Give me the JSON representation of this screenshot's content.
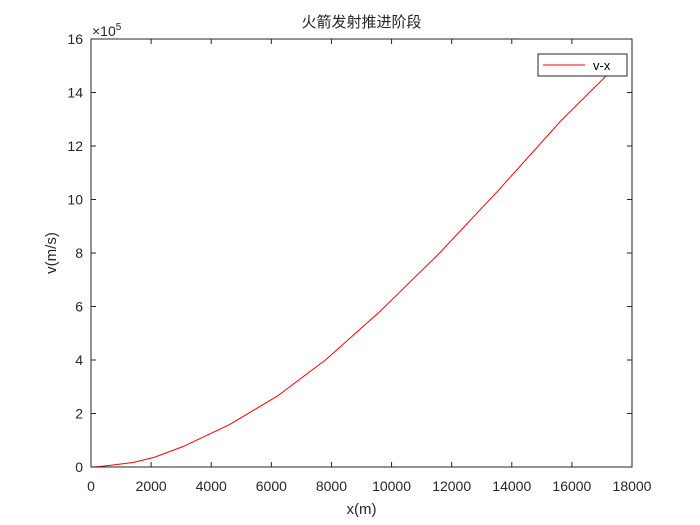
{
  "chart_data": {
    "type": "line",
    "title": "火箭发射推进阶段",
    "xlabel": "x(m)",
    "ylabel": "v(m/s)",
    "xlim": [
      0,
      18000
    ],
    "ylim": [
      0,
      1600000
    ],
    "xticks": [
      0,
      2000,
      4000,
      6000,
      8000,
      10000,
      12000,
      14000,
      16000,
      18000
    ],
    "xtick_labels": [
      "0",
      "2000",
      "4000",
      "6000",
      "8000",
      "10000",
      "12000",
      "14000",
      "16000",
      "18000"
    ],
    "yticks": [
      0,
      200000,
      400000,
      600000,
      800000,
      1000000,
      1200000,
      1400000,
      1600000
    ],
    "ytick_labels": [
      "0",
      "2",
      "4",
      "6",
      "8",
      "10",
      "12",
      "14",
      "16"
    ],
    "y_exponent": {
      "base": "×10",
      "power": "5"
    },
    "grid": false,
    "legend_position": "top-right",
    "series": [
      {
        "name": "v-x",
        "color": "#ff0000",
        "x": [
          0,
          300,
          700,
          1400,
          2100,
          3100,
          4600,
          6200,
          7800,
          9600,
          11600,
          13600,
          15600,
          17300,
          17700
        ],
        "y": [
          0,
          2000,
          7000,
          17000,
          36000,
          78000,
          158000,
          265000,
          400000,
          580000,
          800000,
          1040000,
          1290000,
          1480000,
          1520000
        ]
      }
    ]
  }
}
